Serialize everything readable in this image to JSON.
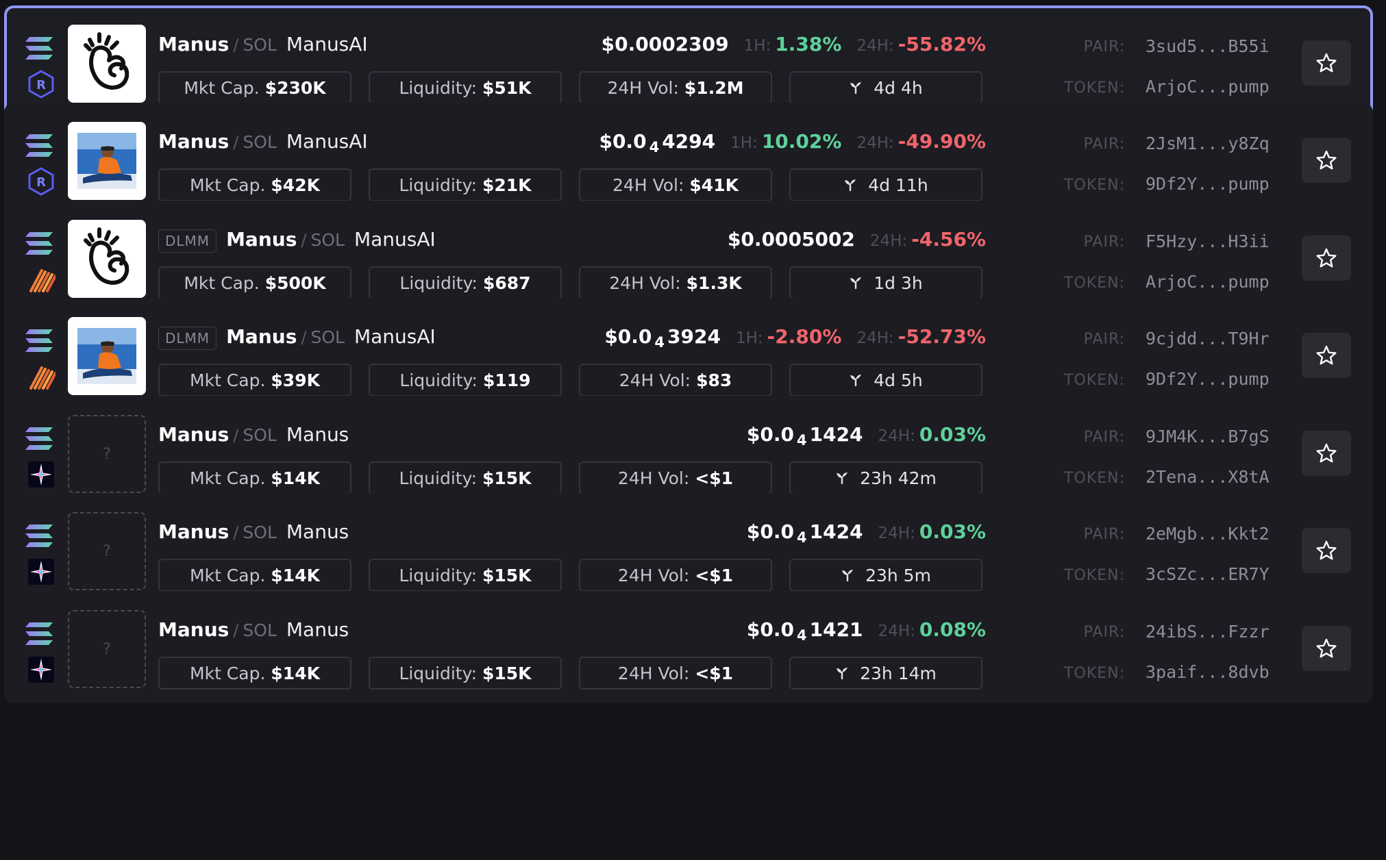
{
  "labels": {
    "mkt_cap": "Mkt Cap.",
    "liquidity": "Liquidity:",
    "vol": "24H Vol:",
    "h1": "1H:",
    "h24": "24H:",
    "pair": "PAIR:",
    "token": "TOKEN:",
    "sep": "/",
    "quote": "SOL",
    "dlmm": "DLMM",
    "placeholder": "?"
  },
  "colors": {
    "positive": "#5ed19a",
    "negative": "#f0656b",
    "selected_border": "#8f98f2"
  },
  "rows": [
    {
      "selected": true,
      "dex": "raydium-icon",
      "dlmm": false,
      "avatar": "manus-hand-logo",
      "base": "Manus",
      "name": "ManusAI",
      "price_pre": "$0.0002309",
      "price_sub": "",
      "price_post": "",
      "ch1h": "1.38%",
      "ch1h_dir": "pos",
      "ch24h": "-55.82%",
      "ch24h_dir": "neg",
      "mktcap": "$230K",
      "liquidity": "$51K",
      "vol": "$1.2M",
      "age": "4d 4h",
      "pair": "3sud5...B55i",
      "token": "ArjoC...pump"
    },
    {
      "selected": false,
      "dex": "raydium-icon",
      "dlmm": false,
      "avatar": "sledding-photo",
      "base": "Manus",
      "name": "ManusAI",
      "price_pre": "$0.0",
      "price_sub": "4",
      "price_post": "4294",
      "ch1h": "10.02%",
      "ch1h_dir": "pos",
      "ch24h": "-49.90%",
      "ch24h_dir": "neg",
      "mktcap": "$42K",
      "liquidity": "$21K",
      "vol": "$41K",
      "age": "4d 11h",
      "pair": "2JsM1...y8Zq",
      "token": "9Df2Y...pump"
    },
    {
      "selected": false,
      "dex": "meteora-icon",
      "dlmm": true,
      "avatar": "manus-hand-logo",
      "base": "Manus",
      "name": "ManusAI",
      "price_pre": "$0.0005002",
      "price_sub": "",
      "price_post": "",
      "ch1h": "",
      "ch1h_dir": "",
      "ch24h": "-4.56%",
      "ch24h_dir": "neg",
      "mktcap": "$500K",
      "liquidity": "$687",
      "vol": "$1.3K",
      "age": "1d 3h",
      "pair": "F5Hzy...H3ii",
      "token": "ArjoC...pump"
    },
    {
      "selected": false,
      "dex": "meteora-icon",
      "dlmm": true,
      "avatar": "sledding-photo",
      "base": "Manus",
      "name": "ManusAI",
      "price_pre": "$0.0",
      "price_sub": "4",
      "price_post": "3924",
      "ch1h": "-2.80%",
      "ch1h_dir": "neg",
      "ch24h": "-52.73%",
      "ch24h_dir": "neg",
      "mktcap": "$39K",
      "liquidity": "$119",
      "vol": "$83",
      "age": "4d 5h",
      "pair": "9cjdd...T9Hr",
      "token": "9Df2Y...pump"
    },
    {
      "selected": false,
      "dex": "sparkle-dex-icon",
      "dlmm": false,
      "avatar": "placeholder",
      "base": "Manus",
      "name": "Manus",
      "price_pre": "$0.0",
      "price_sub": "4",
      "price_post": "1424",
      "ch1h": "",
      "ch1h_dir": "",
      "ch24h": "0.03%",
      "ch24h_dir": "pos",
      "mktcap": "$14K",
      "liquidity": "$15K",
      "vol": "<$1",
      "age": "23h 42m",
      "pair": "9JM4K...B7gS",
      "token": "2Tena...X8tA"
    },
    {
      "selected": false,
      "dex": "sparkle-dex-icon",
      "dlmm": false,
      "avatar": "placeholder",
      "base": "Manus",
      "name": "Manus",
      "price_pre": "$0.0",
      "price_sub": "4",
      "price_post": "1424",
      "ch1h": "",
      "ch1h_dir": "",
      "ch24h": "0.03%",
      "ch24h_dir": "pos",
      "mktcap": "$14K",
      "liquidity": "$15K",
      "vol": "<$1",
      "age": "23h 5m",
      "pair": "2eMgb...Kkt2",
      "token": "3cSZc...ER7Y"
    },
    {
      "selected": false,
      "dex": "sparkle-dex-icon",
      "dlmm": false,
      "avatar": "placeholder",
      "base": "Manus",
      "name": "Manus",
      "price_pre": "$0.0",
      "price_sub": "4",
      "price_post": "1421",
      "ch1h": "",
      "ch1h_dir": "",
      "ch24h": "0.08%",
      "ch24h_dir": "pos",
      "mktcap": "$14K",
      "liquidity": "$15K",
      "vol": "<$1",
      "age": "23h 14m",
      "pair": "24ibS...Fzzr",
      "token": "3paif...8dvb"
    }
  ]
}
